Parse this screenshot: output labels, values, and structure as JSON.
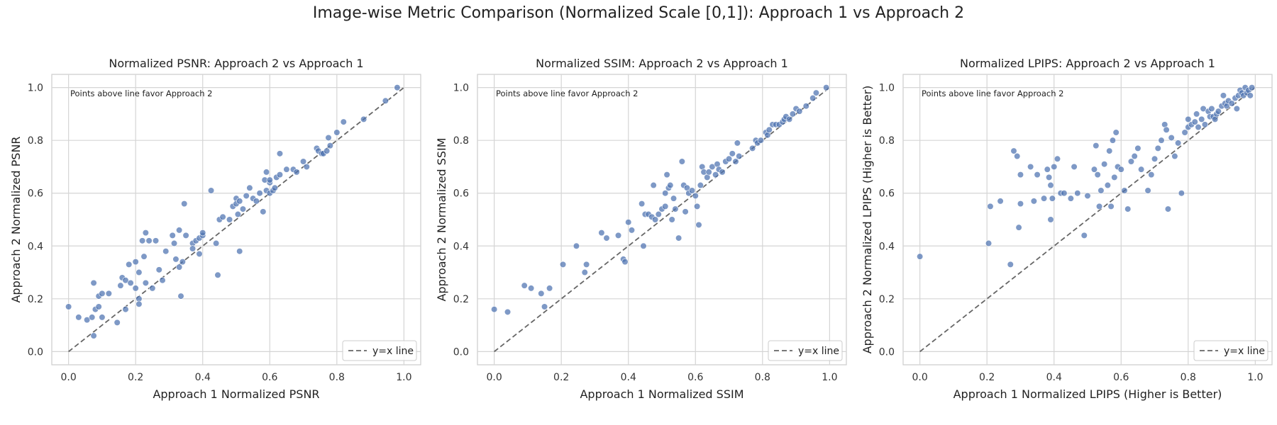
{
  "figure": {
    "suptitle": "Image-wise Metric Comparison (Normalized Scale [0,1]): Approach 1 vs Approach 2"
  },
  "colors": {
    "point": "#4c72b0",
    "reference_line": "#666666",
    "grid": "#d5d5d5",
    "axes_edge": "#cccccc"
  },
  "chart_data": [
    {
      "type": "scatter",
      "title": "Normalized PSNR: Approach 2 vs Approach 1",
      "xlabel": "Approach 1 Normalized PSNR",
      "ylabel": "Approach 2 Normalized PSNR",
      "xlim": [
        0,
        1
      ],
      "ylim": [
        0,
        1
      ],
      "xticks": [
        "0.0",
        "0.2",
        "0.4",
        "0.6",
        "0.8",
        "1.0"
      ],
      "yticks": [
        "0.0",
        "0.2",
        "0.4",
        "0.6",
        "0.8",
        "1.0"
      ],
      "annotation": "Points above line favor Approach 2",
      "legend": {
        "label": "y=x line",
        "placement": "lower-right"
      },
      "grid": true,
      "reference_line": "y=x",
      "points": [
        [
          0.0,
          0.17
        ],
        [
          0.03,
          0.13
        ],
        [
          0.055,
          0.12
        ],
        [
          0.07,
          0.13
        ],
        [
          0.075,
          0.26
        ],
        [
          0.075,
          0.06
        ],
        [
          0.08,
          0.16
        ],
        [
          0.09,
          0.21
        ],
        [
          0.09,
          0.17
        ],
        [
          0.1,
          0.22
        ],
        [
          0.1,
          0.13
        ],
        [
          0.12,
          0.22
        ],
        [
          0.145,
          0.11
        ],
        [
          0.155,
          0.25
        ],
        [
          0.16,
          0.28
        ],
        [
          0.17,
          0.16
        ],
        [
          0.17,
          0.27
        ],
        [
          0.18,
          0.33
        ],
        [
          0.185,
          0.26
        ],
        [
          0.2,
          0.34
        ],
        [
          0.2,
          0.24
        ],
        [
          0.21,
          0.2
        ],
        [
          0.21,
          0.18
        ],
        [
          0.21,
          0.3
        ],
        [
          0.22,
          0.42
        ],
        [
          0.225,
          0.36
        ],
        [
          0.23,
          0.45
        ],
        [
          0.23,
          0.26
        ],
        [
          0.24,
          0.42
        ],
        [
          0.25,
          0.24
        ],
        [
          0.26,
          0.42
        ],
        [
          0.27,
          0.31
        ],
        [
          0.28,
          0.27
        ],
        [
          0.29,
          0.38
        ],
        [
          0.31,
          0.44
        ],
        [
          0.315,
          0.41
        ],
        [
          0.32,
          0.35
        ],
        [
          0.33,
          0.46
        ],
        [
          0.33,
          0.32
        ],
        [
          0.335,
          0.21
        ],
        [
          0.34,
          0.34
        ],
        [
          0.345,
          0.56
        ],
        [
          0.35,
          0.44
        ],
        [
          0.37,
          0.41
        ],
        [
          0.37,
          0.39
        ],
        [
          0.38,
          0.42
        ],
        [
          0.39,
          0.37
        ],
        [
          0.39,
          0.43
        ],
        [
          0.4,
          0.44
        ],
        [
          0.4,
          0.45
        ],
        [
          0.425,
          0.61
        ],
        [
          0.44,
          0.41
        ],
        [
          0.445,
          0.29
        ],
        [
          0.45,
          0.5
        ],
        [
          0.46,
          0.51
        ],
        [
          0.48,
          0.5
        ],
        [
          0.49,
          0.55
        ],
        [
          0.5,
          0.58
        ],
        [
          0.5,
          0.56
        ],
        [
          0.505,
          0.52
        ],
        [
          0.51,
          0.38
        ],
        [
          0.51,
          0.57
        ],
        [
          0.52,
          0.54
        ],
        [
          0.53,
          0.59
        ],
        [
          0.54,
          0.62
        ],
        [
          0.55,
          0.58
        ],
        [
          0.56,
          0.57
        ],
        [
          0.57,
          0.6
        ],
        [
          0.58,
          0.53
        ],
        [
          0.585,
          0.65
        ],
        [
          0.59,
          0.68
        ],
        [
          0.59,
          0.61
        ],
        [
          0.6,
          0.6
        ],
        [
          0.6,
          0.64
        ],
        [
          0.6,
          0.65
        ],
        [
          0.61,
          0.61
        ],
        [
          0.615,
          0.62
        ],
        [
          0.62,
          0.66
        ],
        [
          0.63,
          0.75
        ],
        [
          0.63,
          0.67
        ],
        [
          0.65,
          0.69
        ],
        [
          0.67,
          0.69
        ],
        [
          0.68,
          0.68
        ],
        [
          0.7,
          0.72
        ],
        [
          0.71,
          0.7
        ],
        [
          0.74,
          0.77
        ],
        [
          0.745,
          0.76
        ],
        [
          0.755,
          0.75
        ],
        [
          0.76,
          0.75
        ],
        [
          0.77,
          0.76
        ],
        [
          0.775,
          0.81
        ],
        [
          0.78,
          0.78
        ],
        [
          0.8,
          0.83
        ],
        [
          0.82,
          0.87
        ],
        [
          0.88,
          0.88
        ],
        [
          0.945,
          0.95
        ],
        [
          0.98,
          1.0
        ]
      ]
    },
    {
      "type": "scatter",
      "title": "Normalized SSIM: Approach 2 vs Approach 1",
      "xlabel": "Approach 1 Normalized SSIM",
      "ylabel": "Approach 2 Normalized SSIM",
      "xlim": [
        0,
        1
      ],
      "ylim": [
        0,
        1
      ],
      "xticks": [
        "0.0",
        "0.2",
        "0.4",
        "0.6",
        "0.8",
        "1.0"
      ],
      "yticks": [
        "0.0",
        "0.2",
        "0.4",
        "0.6",
        "0.8",
        "1.0"
      ],
      "annotation": "Points above line favor Approach 2",
      "legend": {
        "label": "y=x line",
        "placement": "lower-right"
      },
      "grid": true,
      "reference_line": "y=x",
      "points": [
        [
          0.0,
          0.16
        ],
        [
          0.04,
          0.15
        ],
        [
          0.09,
          0.25
        ],
        [
          0.11,
          0.24
        ],
        [
          0.14,
          0.22
        ],
        [
          0.15,
          0.17
        ],
        [
          0.165,
          0.24
        ],
        [
          0.205,
          0.33
        ],
        [
          0.245,
          0.4
        ],
        [
          0.27,
          0.3
        ],
        [
          0.275,
          0.33
        ],
        [
          0.32,
          0.45
        ],
        [
          0.335,
          0.43
        ],
        [
          0.37,
          0.44
        ],
        [
          0.385,
          0.35
        ],
        [
          0.39,
          0.34
        ],
        [
          0.4,
          0.49
        ],
        [
          0.41,
          0.46
        ],
        [
          0.44,
          0.56
        ],
        [
          0.445,
          0.4
        ],
        [
          0.45,
          0.52
        ],
        [
          0.46,
          0.52
        ],
        [
          0.47,
          0.51
        ],
        [
          0.475,
          0.63
        ],
        [
          0.48,
          0.5
        ],
        [
          0.49,
          0.52
        ],
        [
          0.5,
          0.54
        ],
        [
          0.51,
          0.55
        ],
        [
          0.51,
          0.6
        ],
        [
          0.515,
          0.67
        ],
        [
          0.52,
          0.62
        ],
        [
          0.525,
          0.63
        ],
        [
          0.53,
          0.5
        ],
        [
          0.535,
          0.58
        ],
        [
          0.54,
          0.54
        ],
        [
          0.55,
          0.43
        ],
        [
          0.56,
          0.72
        ],
        [
          0.565,
          0.63
        ],
        [
          0.57,
          0.53
        ],
        [
          0.575,
          0.62
        ],
        [
          0.58,
          0.6
        ],
        [
          0.59,
          0.61
        ],
        [
          0.6,
          0.59
        ],
        [
          0.605,
          0.55
        ],
        [
          0.61,
          0.48
        ],
        [
          0.615,
          0.63
        ],
        [
          0.62,
          0.7
        ],
        [
          0.625,
          0.68
        ],
        [
          0.635,
          0.66
        ],
        [
          0.64,
          0.68
        ],
        [
          0.65,
          0.7
        ],
        [
          0.66,
          0.67
        ],
        [
          0.665,
          0.71
        ],
        [
          0.67,
          0.69
        ],
        [
          0.68,
          0.68
        ],
        [
          0.69,
          0.72
        ],
        [
          0.7,
          0.73
        ],
        [
          0.71,
          0.75
        ],
        [
          0.72,
          0.72
        ],
        [
          0.725,
          0.79
        ],
        [
          0.73,
          0.74
        ],
        [
          0.77,
          0.77
        ],
        [
          0.78,
          0.8
        ],
        [
          0.785,
          0.79
        ],
        [
          0.795,
          0.8
        ],
        [
          0.81,
          0.83
        ],
        [
          0.815,
          0.82
        ],
        [
          0.82,
          0.84
        ],
        [
          0.83,
          0.86
        ],
        [
          0.84,
          0.86
        ],
        [
          0.85,
          0.86
        ],
        [
          0.86,
          0.87
        ],
        [
          0.865,
          0.88
        ],
        [
          0.87,
          0.89
        ],
        [
          0.88,
          0.88
        ],
        [
          0.89,
          0.9
        ],
        [
          0.9,
          0.92
        ],
        [
          0.91,
          0.91
        ],
        [
          0.93,
          0.93
        ],
        [
          0.95,
          0.96
        ],
        [
          0.96,
          0.98
        ],
        [
          0.99,
          1.0
        ]
      ]
    },
    {
      "type": "scatter",
      "title": "Normalized LPIPS: Approach 2 vs Approach 1",
      "xlabel": "Approach 1 Normalized LPIPS (Higher is Better)",
      "ylabel": "Approach 2 Normalized LPIPS (Higher is Better)",
      "xlim": [
        0,
        1
      ],
      "ylim": [
        0,
        1
      ],
      "xticks": [
        "0.0",
        "0.2",
        "0.4",
        "0.6",
        "0.8",
        "1.0"
      ],
      "yticks": [
        "0.0",
        "0.2",
        "0.4",
        "0.6",
        "0.8",
        "1.0"
      ],
      "annotation": "Points above line favor Approach 2",
      "legend": {
        "label": "y=x line",
        "placement": "lower-right"
      },
      "grid": true,
      "reference_line": "y=x",
      "points": [
        [
          0.0,
          0.36
        ],
        [
          0.205,
          0.41
        ],
        [
          0.21,
          0.55
        ],
        [
          0.24,
          0.57
        ],
        [
          0.27,
          0.33
        ],
        [
          0.28,
          0.76
        ],
        [
          0.29,
          0.74
        ],
        [
          0.295,
          0.47
        ],
        [
          0.3,
          0.56
        ],
        [
          0.3,
          0.67
        ],
        [
          0.33,
          0.7
        ],
        [
          0.34,
          0.57
        ],
        [
          0.35,
          0.67
        ],
        [
          0.37,
          0.58
        ],
        [
          0.38,
          0.69
        ],
        [
          0.385,
          0.66
        ],
        [
          0.39,
          0.5
        ],
        [
          0.39,
          0.63
        ],
        [
          0.395,
          0.58
        ],
        [
          0.4,
          0.7
        ],
        [
          0.41,
          0.73
        ],
        [
          0.42,
          0.6
        ],
        [
          0.43,
          0.6
        ],
        [
          0.45,
          0.58
        ],
        [
          0.46,
          0.7
        ],
        [
          0.47,
          0.6
        ],
        [
          0.49,
          0.44
        ],
        [
          0.5,
          0.59
        ],
        [
          0.52,
          0.69
        ],
        [
          0.525,
          0.78
        ],
        [
          0.53,
          0.67
        ],
        [
          0.535,
          0.55
        ],
        [
          0.54,
          0.61
        ],
        [
          0.55,
          0.71
        ],
        [
          0.56,
          0.63
        ],
        [
          0.565,
          0.76
        ],
        [
          0.57,
          0.55
        ],
        [
          0.575,
          0.8
        ],
        [
          0.58,
          0.66
        ],
        [
          0.585,
          0.83
        ],
        [
          0.59,
          0.7
        ],
        [
          0.6,
          0.69
        ],
        [
          0.61,
          0.61
        ],
        [
          0.62,
          0.54
        ],
        [
          0.63,
          0.72
        ],
        [
          0.64,
          0.74
        ],
        [
          0.65,
          0.77
        ],
        [
          0.66,
          0.69
        ],
        [
          0.68,
          0.61
        ],
        [
          0.69,
          0.67
        ],
        [
          0.7,
          0.73
        ],
        [
          0.71,
          0.77
        ],
        [
          0.72,
          0.8
        ],
        [
          0.73,
          0.86
        ],
        [
          0.735,
          0.84
        ],
        [
          0.74,
          0.54
        ],
        [
          0.75,
          0.81
        ],
        [
          0.76,
          0.74
        ],
        [
          0.77,
          0.79
        ],
        [
          0.78,
          0.6
        ],
        [
          0.79,
          0.83
        ],
        [
          0.8,
          0.85
        ],
        [
          0.8,
          0.88
        ],
        [
          0.81,
          0.86
        ],
        [
          0.82,
          0.87
        ],
        [
          0.825,
          0.9
        ],
        [
          0.83,
          0.85
        ],
        [
          0.84,
          0.88
        ],
        [
          0.845,
          0.92
        ],
        [
          0.85,
          0.86
        ],
        [
          0.86,
          0.91
        ],
        [
          0.865,
          0.89
        ],
        [
          0.87,
          0.92
        ],
        [
          0.875,
          0.89
        ],
        [
          0.88,
          0.88
        ],
        [
          0.885,
          0.9
        ],
        [
          0.89,
          0.91
        ],
        [
          0.9,
          0.93
        ],
        [
          0.905,
          0.97
        ],
        [
          0.91,
          0.94
        ],
        [
          0.915,
          0.93
        ],
        [
          0.92,
          0.95
        ],
        [
          0.93,
          0.94
        ],
        [
          0.94,
          0.96
        ],
        [
          0.945,
          0.92
        ],
        [
          0.95,
          0.97
        ],
        [
          0.955,
          0.99
        ],
        [
          0.96,
          0.98
        ],
        [
          0.965,
          0.97
        ],
        [
          0.97,
          1.0
        ],
        [
          0.975,
          0.98
        ],
        [
          0.98,
          0.99
        ],
        [
          0.985,
          0.97
        ],
        [
          0.99,
          1.0
        ]
      ]
    }
  ]
}
